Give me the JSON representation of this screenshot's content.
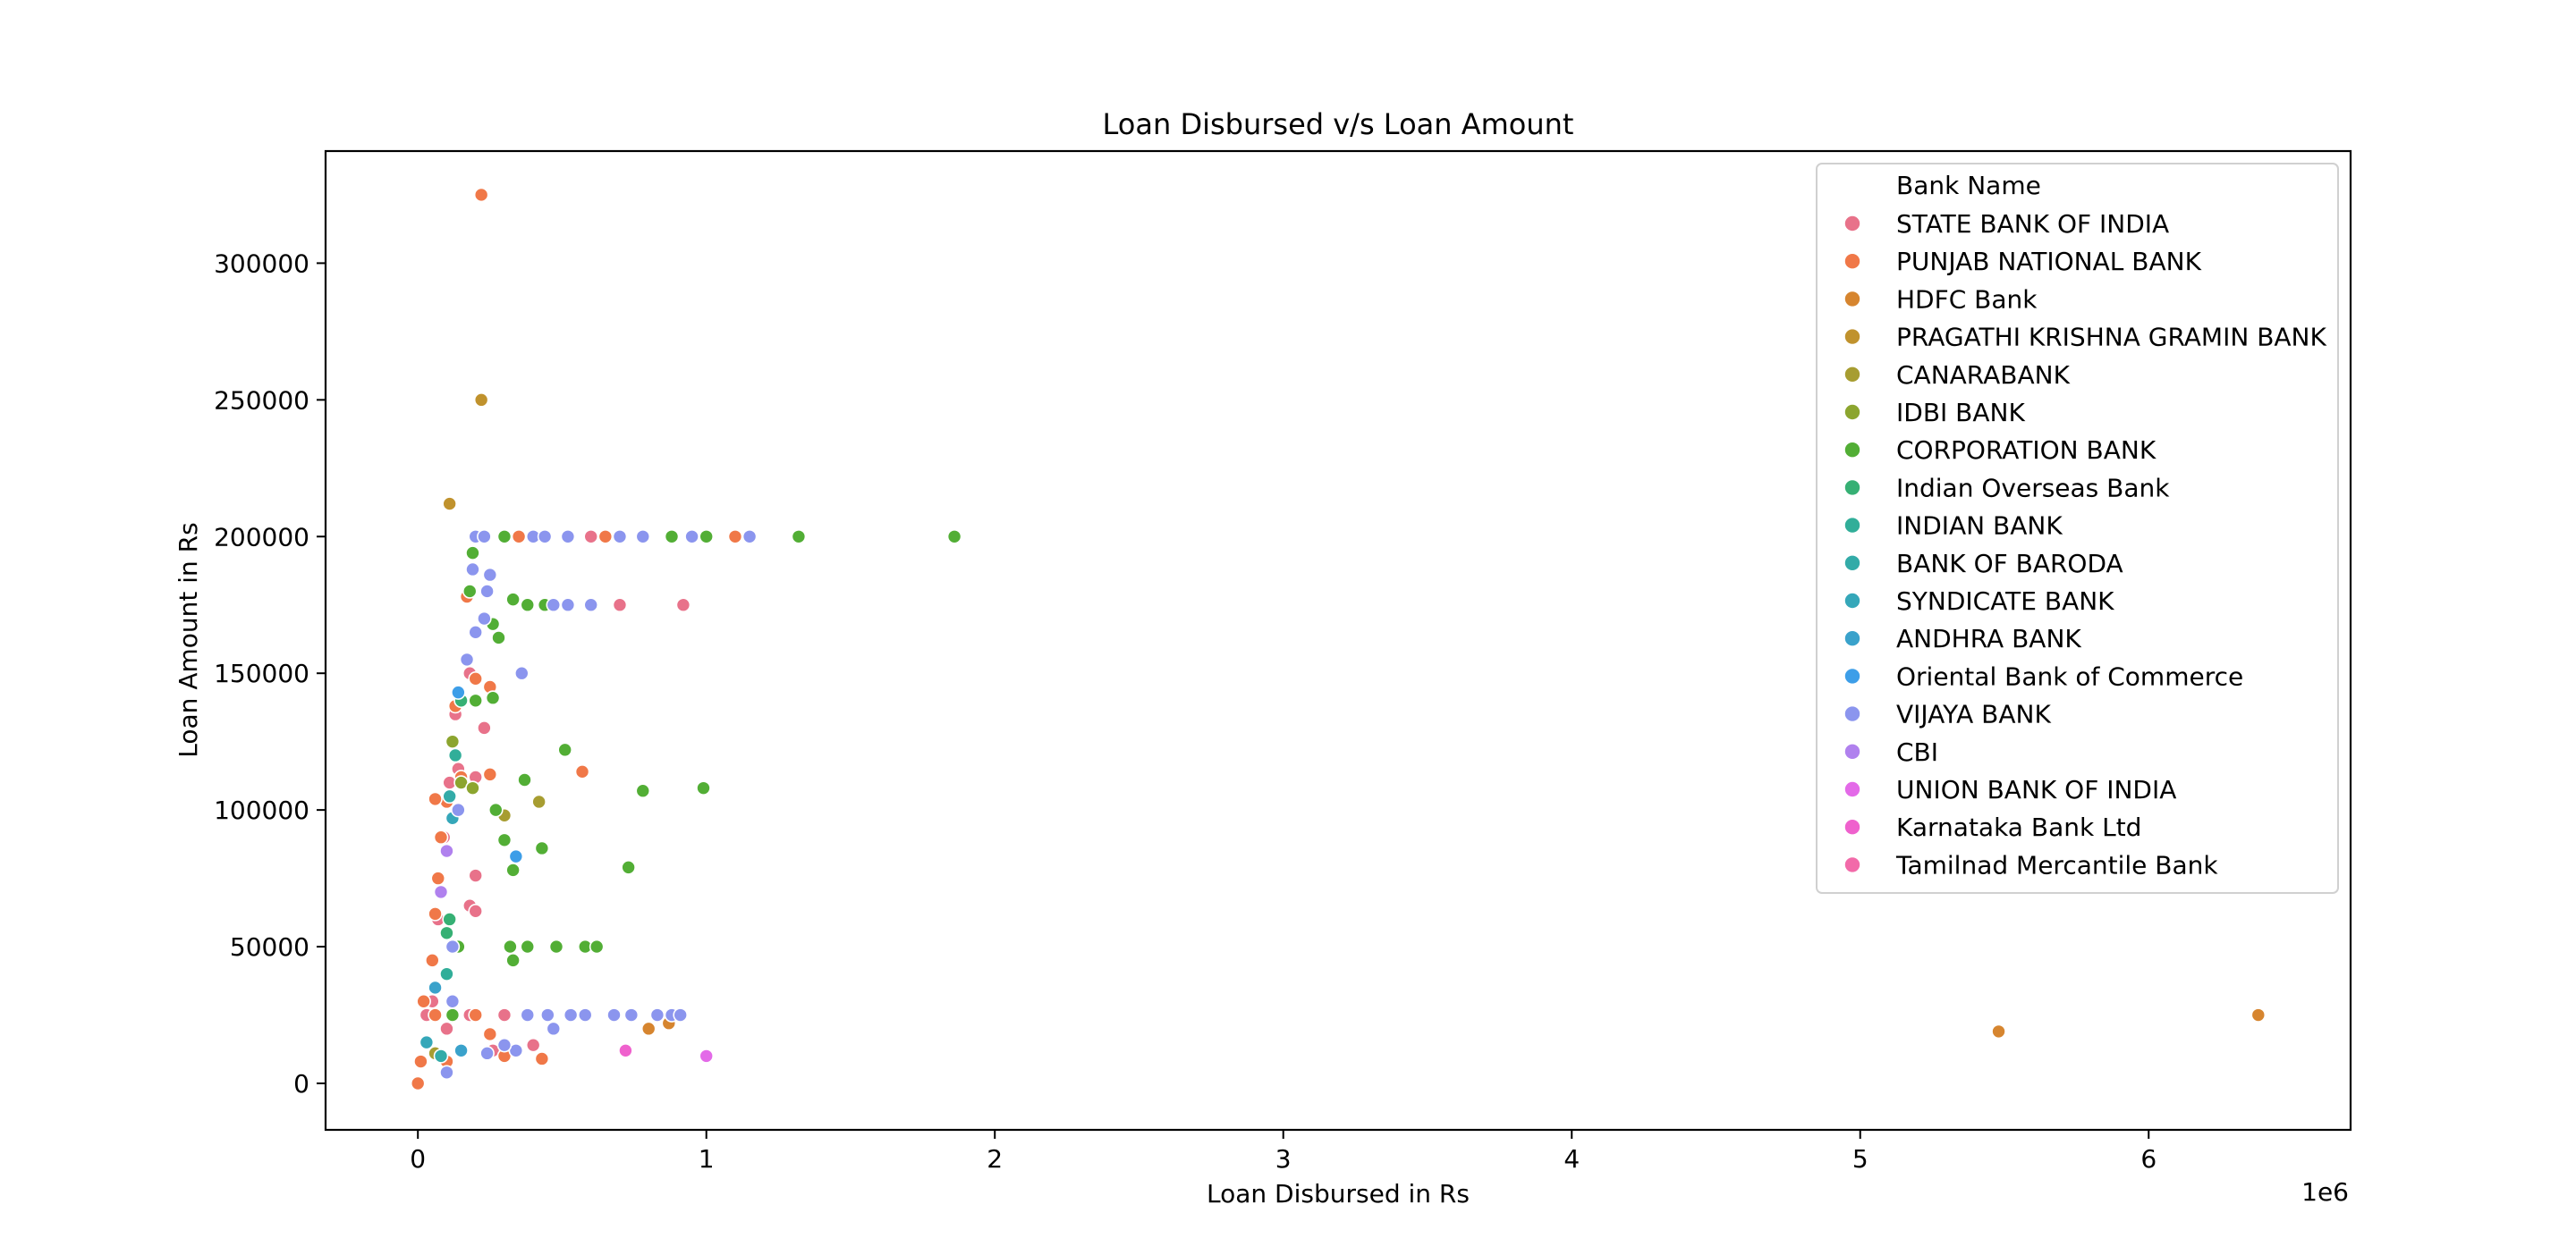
{
  "chart_data": {
    "type": "scatter",
    "title": "Loan Disbursed v/s Loan Amount",
    "xlabel": "Loan Disbursed in Rs",
    "ylabel": "Loan Amount in Rs",
    "x_offset_text": "1e6",
    "xlim": [
      -320000,
      6700000
    ],
    "ylim": [
      -17000,
      341000
    ],
    "x_ticks": [
      0,
      1000000,
      2000000,
      3000000,
      4000000,
      5000000,
      6000000
    ],
    "x_tick_labels": [
      "0",
      "1",
      "2",
      "3",
      "4",
      "5",
      "6"
    ],
    "y_ticks": [
      0,
      50000,
      100000,
      150000,
      200000,
      250000,
      300000
    ],
    "y_tick_labels": [
      "0",
      "50000",
      "100000",
      "150000",
      "200000",
      "250000",
      "300000"
    ],
    "grid": false,
    "legend": {
      "title": "Bank Name",
      "placement": "top-right"
    },
    "series": [
      {
        "name": "STATE BANK OF INDIA",
        "color": "#e8728a",
        "points": [
          [
            30000,
            25000
          ],
          [
            50000,
            30000
          ],
          [
            70000,
            60000
          ],
          [
            90000,
            90000
          ],
          [
            110000,
            110000
          ],
          [
            130000,
            135000
          ],
          [
            180000,
            150000
          ],
          [
            200000,
            112000
          ],
          [
            200000,
            76000
          ],
          [
            180000,
            65000
          ],
          [
            200000,
            63000
          ],
          [
            180000,
            25000
          ],
          [
            260000,
            12000
          ],
          [
            400000,
            14000
          ],
          [
            600000,
            200000
          ],
          [
            700000,
            175000
          ],
          [
            920000,
            175000
          ],
          [
            230000,
            130000
          ],
          [
            140000,
            115000
          ],
          [
            100000,
            20000
          ],
          [
            300000,
            25000
          ]
        ]
      },
      {
        "name": "PUNJAB NATIONAL BANK",
        "color": "#f07848",
        "points": [
          [
            220000,
            325000
          ],
          [
            0,
            0
          ],
          [
            20000,
            30000
          ],
          [
            50000,
            45000
          ],
          [
            60000,
            62000
          ],
          [
            70000,
            75000
          ],
          [
            80000,
            90000
          ],
          [
            100000,
            103000
          ],
          [
            60000,
            104000
          ],
          [
            130000,
            138000
          ],
          [
            150000,
            112000
          ],
          [
            170000,
            178000
          ],
          [
            200000,
            148000
          ],
          [
            250000,
            145000
          ],
          [
            260000,
            141000
          ],
          [
            250000,
            113000
          ],
          [
            570000,
            114000
          ],
          [
            350000,
            200000
          ],
          [
            650000,
            200000
          ],
          [
            1100000,
            200000
          ],
          [
            60000,
            25000
          ],
          [
            200000,
            25000
          ],
          [
            300000,
            10000
          ],
          [
            430000,
            9000
          ],
          [
            250000,
            18000
          ],
          [
            100000,
            8000
          ],
          [
            10000,
            8000
          ]
        ]
      },
      {
        "name": "HDFC Bank",
        "color": "#d6852f",
        "points": [
          [
            5480000,
            19000
          ],
          [
            6380000,
            25000
          ],
          [
            800000,
            20000
          ],
          [
            870000,
            22000
          ]
        ]
      },
      {
        "name": "PRAGATHI KRISHNA GRAMIN BANK",
        "color": "#c0922d",
        "points": [
          [
            220000,
            250000
          ],
          [
            110000,
            212000
          ]
        ]
      },
      {
        "name": "CANARABANK",
        "color": "#a79d31",
        "points": [
          [
            300000,
            98000
          ],
          [
            420000,
            103000
          ],
          [
            60000,
            11000
          ]
        ]
      },
      {
        "name": "IDBI BANK",
        "color": "#8ca52f",
        "points": [
          [
            120000,
            125000
          ],
          [
            150000,
            110000
          ],
          [
            190000,
            108000
          ]
        ]
      },
      {
        "name": "CORPORATION BANK",
        "color": "#52ae35",
        "points": [
          [
            1860000,
            200000
          ],
          [
            1320000,
            200000
          ],
          [
            1000000,
            200000
          ],
          [
            880000,
            200000
          ],
          [
            300000,
            200000
          ],
          [
            190000,
            194000
          ],
          [
            180000,
            180000
          ],
          [
            330000,
            177000
          ],
          [
            380000,
            175000
          ],
          [
            440000,
            175000
          ],
          [
            260000,
            168000
          ],
          [
            280000,
            163000
          ],
          [
            200000,
            140000
          ],
          [
            260000,
            141000
          ],
          [
            510000,
            122000
          ],
          [
            370000,
            111000
          ],
          [
            780000,
            107000
          ],
          [
            990000,
            108000
          ],
          [
            270000,
            100000
          ],
          [
            300000,
            89000
          ],
          [
            430000,
            86000
          ],
          [
            330000,
            78000
          ],
          [
            730000,
            79000
          ],
          [
            140000,
            50000
          ],
          [
            320000,
            50000
          ],
          [
            380000,
            50000
          ],
          [
            480000,
            50000
          ],
          [
            580000,
            50000
          ],
          [
            620000,
            50000
          ],
          [
            330000,
            45000
          ],
          [
            120000,
            25000
          ]
        ]
      },
      {
        "name": "Indian Overseas Bank",
        "color": "#36b074",
        "points": [
          [
            150000,
            140000
          ],
          [
            110000,
            60000
          ],
          [
            100000,
            55000
          ]
        ]
      },
      {
        "name": "INDIAN BANK",
        "color": "#31ae99",
        "points": [
          [
            130000,
            120000
          ],
          [
            100000,
            40000
          ]
        ]
      },
      {
        "name": "BANK OF BARODA",
        "color": "#33aba8",
        "points": [
          [
            110000,
            105000
          ],
          [
            80000,
            10000
          ]
        ]
      },
      {
        "name": "SYNDICATE BANK",
        "color": "#35a7b9",
        "points": [
          [
            30000,
            15000
          ],
          [
            120000,
            97000
          ]
        ]
      },
      {
        "name": "ANDHRA BANK",
        "color": "#3aa2cb",
        "points": [
          [
            60000,
            35000
          ],
          [
            150000,
            12000
          ]
        ]
      },
      {
        "name": "Oriental Bank of Commerce",
        "color": "#3d9ee8",
        "points": [
          [
            140000,
            143000
          ],
          [
            340000,
            83000
          ]
        ]
      },
      {
        "name": "VIJAYA BANK",
        "color": "#8b95ee",
        "points": [
          [
            200000,
            200000
          ],
          [
            230000,
            200000
          ],
          [
            400000,
            200000
          ],
          [
            440000,
            200000
          ],
          [
            520000,
            200000
          ],
          [
            700000,
            200000
          ],
          [
            780000,
            200000
          ],
          [
            950000,
            200000
          ],
          [
            1150000,
            200000
          ],
          [
            190000,
            188000
          ],
          [
            250000,
            186000
          ],
          [
            240000,
            180000
          ],
          [
            200000,
            165000
          ],
          [
            230000,
            170000
          ],
          [
            170000,
            155000
          ],
          [
            360000,
            150000
          ],
          [
            140000,
            100000
          ],
          [
            120000,
            50000
          ],
          [
            120000,
            30000
          ],
          [
            470000,
            175000
          ],
          [
            520000,
            175000
          ],
          [
            600000,
            175000
          ],
          [
            380000,
            25000
          ],
          [
            450000,
            25000
          ],
          [
            530000,
            25000
          ],
          [
            580000,
            25000
          ],
          [
            680000,
            25000
          ],
          [
            740000,
            25000
          ],
          [
            830000,
            25000
          ],
          [
            880000,
            25000
          ],
          [
            910000,
            25000
          ],
          [
            470000,
            20000
          ],
          [
            240000,
            11000
          ],
          [
            340000,
            12000
          ],
          [
            300000,
            14000
          ],
          [
            100000,
            4000
          ]
        ]
      },
      {
        "name": "CBI",
        "color": "#b081ee",
        "points": [
          [
            80000,
            70000
          ],
          [
            100000,
            85000
          ]
        ]
      },
      {
        "name": "UNION BANK OF INDIA",
        "color": "#e36ae8",
        "points": [
          [
            1000000,
            10000
          ]
        ]
      },
      {
        "name": "Karnataka Bank Ltd",
        "color": "#ef61cd",
        "points": [
          [
            720000,
            12000
          ]
        ]
      },
      {
        "name": "Tamilnad Mercantile Bank",
        "color": "#f26aa9",
        "points": []
      }
    ]
  }
}
